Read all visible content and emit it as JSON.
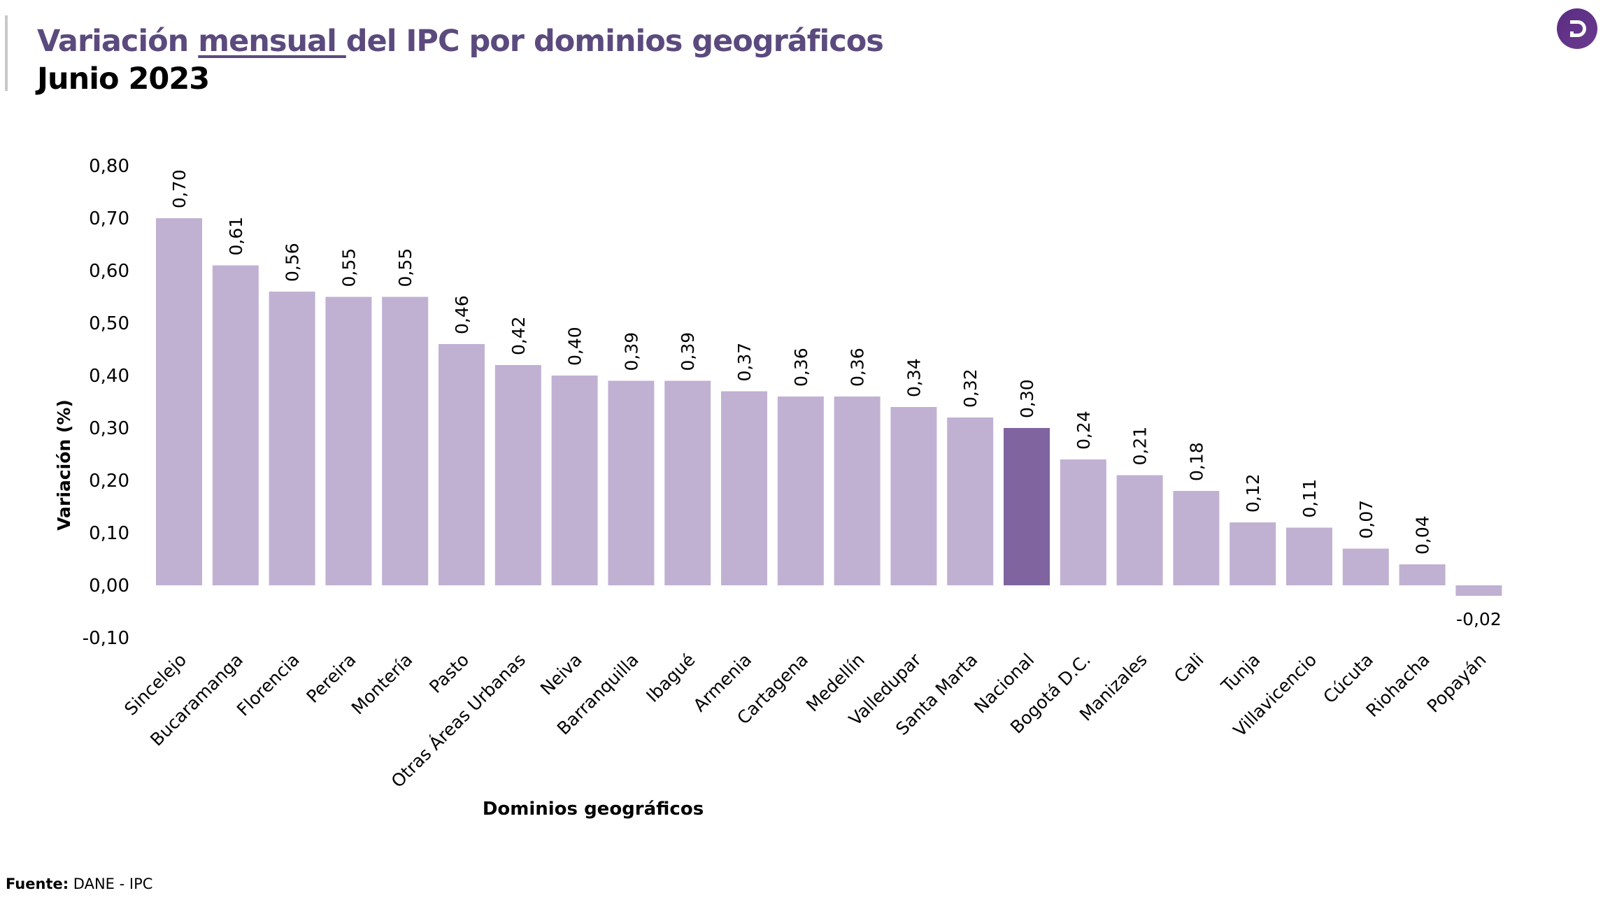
{
  "header": {
    "title_pre": "Variación ",
    "title_underlined": "mensual ",
    "title_post": "del IPC por dominios geográficos",
    "subtitle": "Junio 2023",
    "logo_letter": "D"
  },
  "footer": {
    "source_label": "Fuente:",
    "source_value": " DANE - IPC"
  },
  "colors": {
    "bar": "#c0b1d3",
    "highlight": "#7f64a0",
    "title": "#5b4a7e"
  },
  "chart_data": {
    "type": "bar",
    "title": "",
    "xlabel": "Dominios geográficos",
    "ylabel": "Variación (%)",
    "ylim": [
      -0.1,
      0.8
    ],
    "yticks": [
      "-0,10",
      "0,00",
      "0,10",
      "0,20",
      "0,30",
      "0,40",
      "0,50",
      "0,60",
      "0,70",
      "0,80"
    ],
    "grid": false,
    "highlight_category": "Nacional",
    "categories": [
      "Sincelejo",
      "Bucaramanga",
      "Florencia",
      "Pereira",
      "Montería",
      "Pasto",
      "Otras Áreas Urbanas",
      "Neiva",
      "Barranquilla",
      "Ibagué",
      "Armenia",
      "Cartagena",
      "Medellín",
      "Valledupar",
      "Santa Marta",
      "Nacional",
      "Bogotá D.C.",
      "Manizales",
      "Cali",
      "Tunja",
      "Villavicencio",
      "Cúcuta",
      "Riohacha",
      "Popayán"
    ],
    "values": [
      0.7,
      0.61,
      0.56,
      0.55,
      0.55,
      0.46,
      0.42,
      0.4,
      0.39,
      0.39,
      0.37,
      0.36,
      0.36,
      0.34,
      0.32,
      0.3,
      0.24,
      0.21,
      0.18,
      0.12,
      0.11,
      0.07,
      0.04,
      -0.02
    ],
    "data_labels": [
      "0,70",
      "0,61",
      "0,56",
      "0,55",
      "0,55",
      "0,46",
      "0,42",
      "0,40",
      "0,39",
      "0,39",
      "0,37",
      "0,36",
      "0,36",
      "0,34",
      "0,32",
      "0,30",
      "0,24",
      "0,21",
      "0,18",
      "0,12",
      "0,11",
      "0,07",
      "0,04",
      "-0,02"
    ]
  }
}
